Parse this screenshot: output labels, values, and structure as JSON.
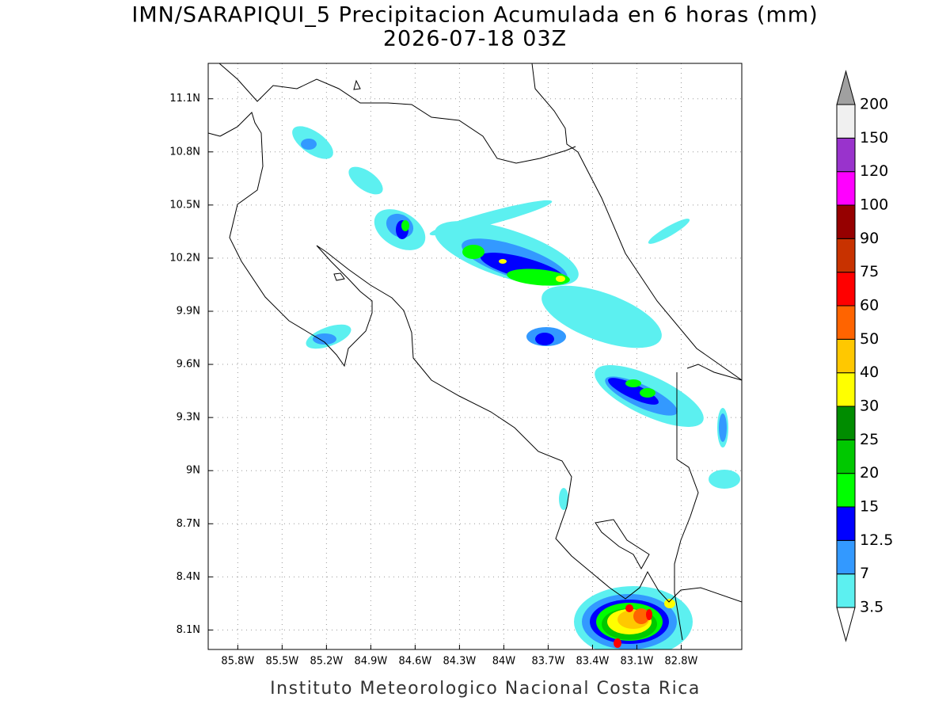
{
  "map": {
    "title": "IMN/SARAPIQUI_5 Precipitacion Acumulada en 6 horas (mm)",
    "subtitle": "2026-07-18 03Z",
    "footer": "Instituto Meteorologico Nacional Costa Rica",
    "xlim": [
      -86.0,
      -82.39
    ],
    "ylim": [
      7.99,
      11.3
    ],
    "grid": true,
    "xticks": [
      {
        "value": -85.8,
        "label": "85.8W"
      },
      {
        "value": -85.5,
        "label": "85.5W"
      },
      {
        "value": -85.2,
        "label": "85.2W"
      },
      {
        "value": -84.9,
        "label": "84.9W"
      },
      {
        "value": -84.6,
        "label": "84.6W"
      },
      {
        "value": -84.3,
        "label": "84.3W"
      },
      {
        "value": -84.0,
        "label": "84W"
      },
      {
        "value": -83.7,
        "label": "83.7W"
      },
      {
        "value": -83.4,
        "label": "83.4W"
      },
      {
        "value": -83.1,
        "label": "83.1W"
      },
      {
        "value": -82.8,
        "label": "82.8W"
      }
    ],
    "yticks": [
      {
        "value": 8.1,
        "label": "8.1N"
      },
      {
        "value": 8.4,
        "label": "8.4N"
      },
      {
        "value": 8.7,
        "label": "8.7N"
      },
      {
        "value": 9.0,
        "label": "9N"
      },
      {
        "value": 9.3,
        "label": "9.3N"
      },
      {
        "value": 9.6,
        "label": "9.6N"
      },
      {
        "value": 9.9,
        "label": "9.9N"
      },
      {
        "value": 10.2,
        "label": "10.2N"
      },
      {
        "value": 10.5,
        "label": "10.5N"
      },
      {
        "value": 10.8,
        "label": "10.8N"
      },
      {
        "value": 11.1,
        "label": "11.1N"
      }
    ]
  },
  "colorbar": {
    "levels": [
      3.5,
      7,
      12.5,
      15,
      20,
      25,
      30,
      40,
      50,
      60,
      75,
      90,
      100,
      120,
      150,
      200
    ],
    "colors": [
      "#5cf0f0",
      "#3399ff",
      "#0000ff",
      "#00ff00",
      "#00c800",
      "#008c00",
      "#ffff00",
      "#ffc800",
      "#ff6400",
      "#ff0000",
      "#c83200",
      "#960000",
      "#ff00ff",
      "#9933cc",
      "#f0f0f0"
    ],
    "over_color": "#a0a0a0",
    "under_color": "#ffffff"
  }
}
